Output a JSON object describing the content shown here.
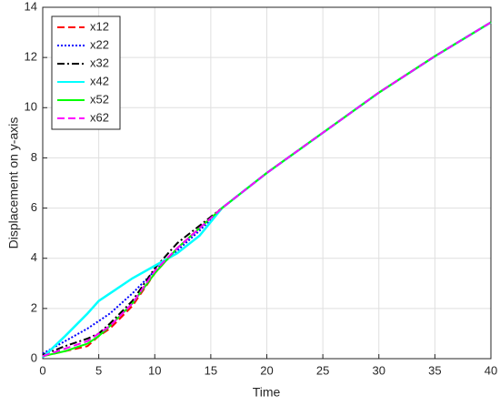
{
  "chart_data": {
    "type": "line",
    "xlabel": "Time",
    "ylabel": "Displacement on y-axis",
    "x": [
      0,
      2,
      4,
      5,
      6,
      8,
      10,
      12,
      14,
      16,
      18,
      20,
      25,
      30,
      35,
      40
    ],
    "series": [
      {
        "name": "x12",
        "color": "#ff0000",
        "style": "dashed",
        "values": [
          0.1,
          0.3,
          0.5,
          0.9,
          1.2,
          2.1,
          3.4,
          4.4,
          5.2,
          6.0,
          6.7,
          7.4,
          9.0,
          10.6,
          12.05,
          13.4
        ]
      },
      {
        "name": "x22",
        "color": "#0000ff",
        "style": "dotted",
        "values": [
          0.2,
          0.7,
          1.2,
          1.5,
          1.8,
          2.6,
          3.5,
          4.3,
          5.1,
          6.0,
          6.7,
          7.4,
          9.0,
          10.6,
          12.05,
          13.4
        ]
      },
      {
        "name": "x32",
        "color": "#000000",
        "style": "dashdot",
        "values": [
          0.15,
          0.5,
          0.8,
          1.0,
          1.4,
          2.3,
          3.6,
          4.6,
          5.3,
          6.0,
          6.7,
          7.4,
          9.0,
          10.6,
          12.05,
          13.4
        ]
      },
      {
        "name": "x42",
        "color": "#00ffff",
        "style": "solid",
        "values": [
          0.05,
          0.9,
          1.8,
          2.3,
          2.6,
          3.2,
          3.7,
          4.2,
          4.9,
          6.0,
          6.7,
          7.4,
          9.0,
          10.6,
          12.05,
          13.4
        ]
      },
      {
        "name": "x52",
        "color": "#00ff00",
        "style": "solid",
        "values": [
          0.1,
          0.3,
          0.6,
          0.9,
          1.3,
          2.2,
          3.4,
          4.4,
          5.2,
          6.0,
          6.7,
          7.4,
          9.0,
          10.6,
          12.05,
          13.4
        ]
      },
      {
        "name": "x62",
        "color": "#ff00ff",
        "style": "dashed",
        "values": [
          0.1,
          0.4,
          0.7,
          1.0,
          1.3,
          2.2,
          3.5,
          4.4,
          5.2,
          6.0,
          6.7,
          7.4,
          9.0,
          10.6,
          12.05,
          13.4
        ]
      }
    ],
    "xlim": [
      0,
      40
    ],
    "xticks": [
      0,
      5,
      10,
      15,
      20,
      25,
      30,
      35,
      40
    ],
    "ylim": [
      0,
      14
    ],
    "yticks": [
      0,
      2,
      4,
      6,
      8,
      10,
      12,
      14
    ],
    "grid": true,
    "legend": "upper-left"
  }
}
